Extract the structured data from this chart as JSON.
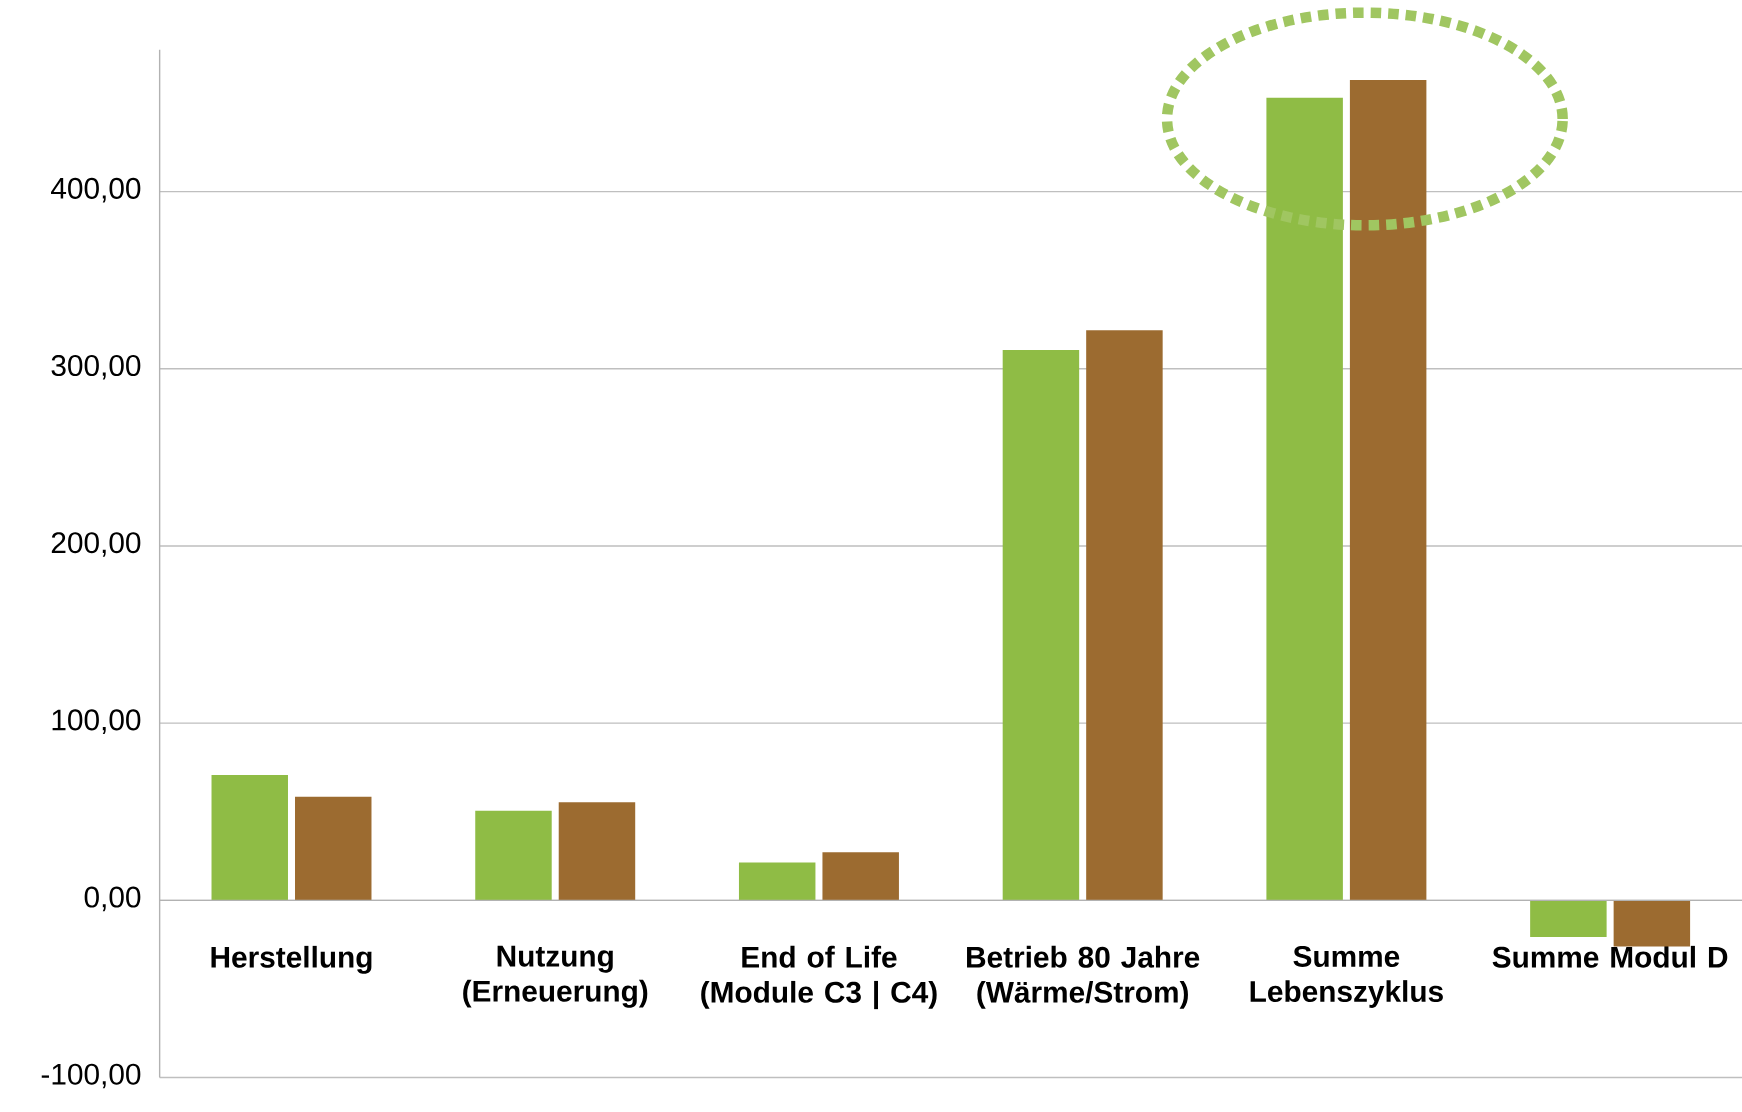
{
  "chart_data": {
    "type": "bar",
    "categories": [
      "Herstellung",
      "Nutzung (Erneuerung)",
      "End of Life (Module C3 | C4)",
      "Betrieb 80 Jahre (Wärme/Strom)",
      "Summe Lebenszyklus",
      "Summe Modul D"
    ],
    "series": [
      {
        "color": "#8fbc45",
        "values": [
          70.7,
          50.5,
          21.3,
          310.6,
          453,
          -20.7
        ]
      },
      {
        "color": "#9c6b30",
        "values": [
          58.5,
          55.3,
          27.1,
          321.8,
          463,
          -26
        ]
      }
    ],
    "ylim": [
      -100,
      480
    ],
    "yticks": [
      {
        "value": -100,
        "label": "-100,00"
      },
      {
        "value": 0,
        "label": "0,00"
      },
      {
        "value": 100,
        "label": "100,00"
      },
      {
        "value": 200,
        "label": "200,00"
      },
      {
        "value": 300,
        "label": "300,00"
      },
      {
        "value": 400,
        "label": "400,00"
      }
    ],
    "grid": "y"
  }
}
